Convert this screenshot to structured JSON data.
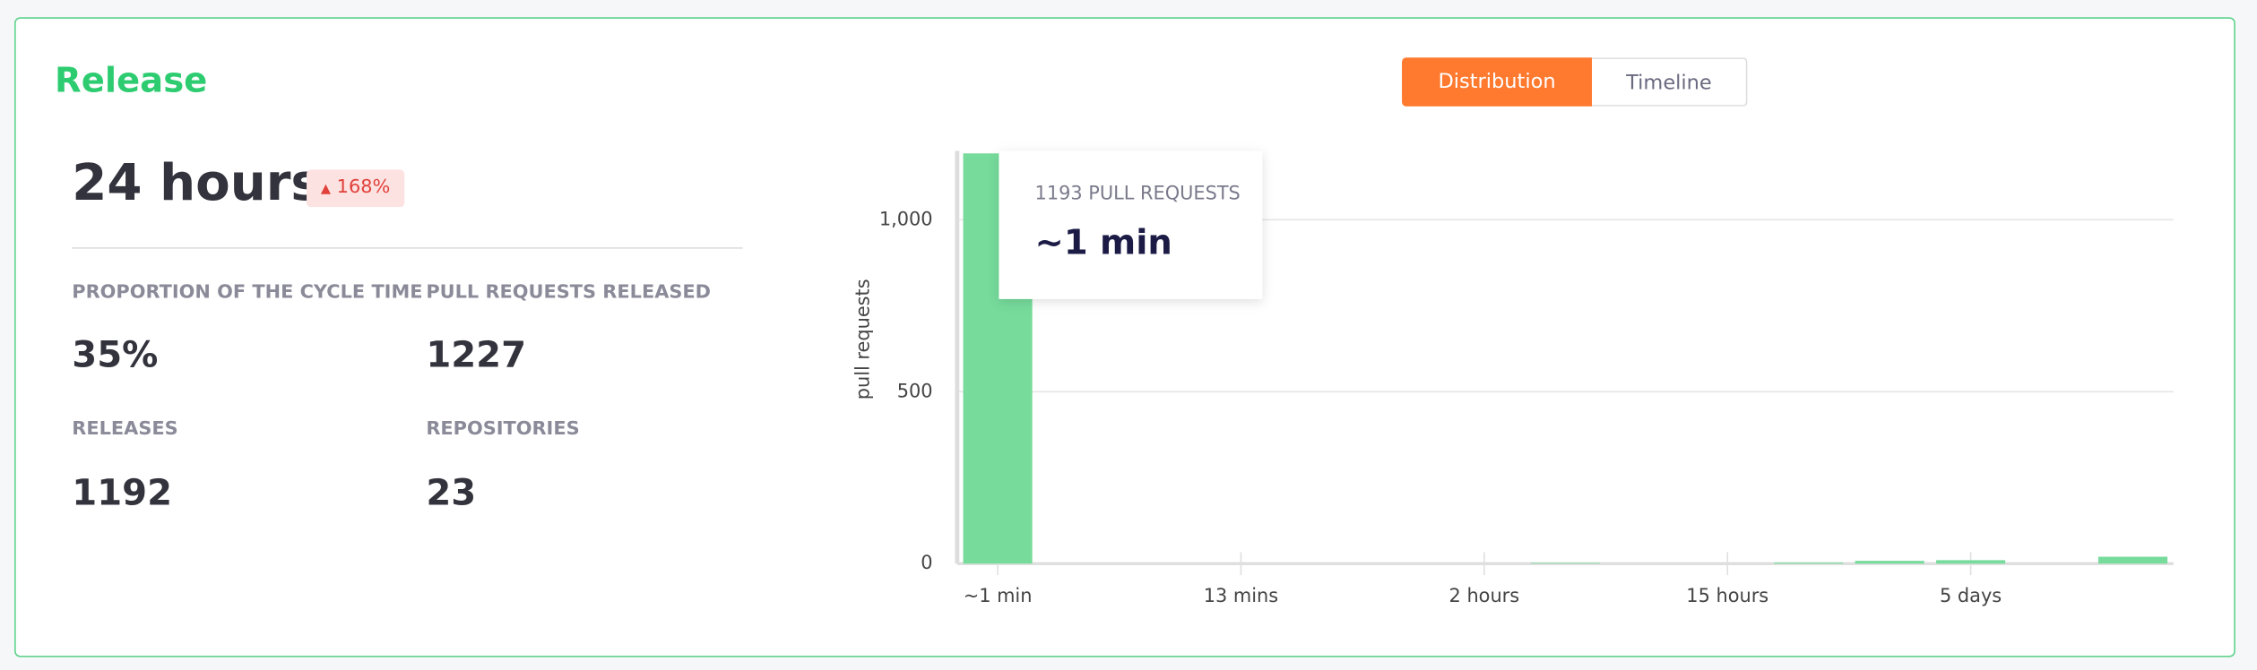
{
  "header": {
    "title": "Release",
    "tabs": [
      "Distribution",
      "Timeline"
    ]
  },
  "summary": {
    "value": "24 hours",
    "change": "168%",
    "stats": [
      {
        "label": "PROPORTION OF THE CYCLE TIME",
        "value": "35%"
      },
      {
        "label": "PULL REQUESTS RELEASED",
        "value": "1227"
      },
      {
        "label": "RELEASES",
        "value": "1192"
      },
      {
        "label": "REPOSITORIES",
        "value": "23"
      }
    ]
  },
  "chart_data": {
    "type": "bar",
    "y_label": "pull requests",
    "categories": [
      "~1 min",
      null,
      null,
      "13 mins",
      null,
      null,
      "2 hours",
      null,
      null,
      "15 hours",
      null,
      null,
      "5 days",
      null,
      null
    ],
    "values": [
      1193,
      0,
      0,
      0,
      0,
      0,
      0,
      2,
      0,
      0,
      3,
      8,
      10,
      0,
      20
    ],
    "color": "#76db9b",
    "ylim": [
      0,
      1200
    ],
    "yticks": [
      0,
      500,
      {
        "value": 1000,
        "label": "1,000"
      }
    ],
    "grid": true,
    "tooltip": {
      "count": "1193 PULL REQUESTS",
      "title": "~1 min"
    }
  }
}
